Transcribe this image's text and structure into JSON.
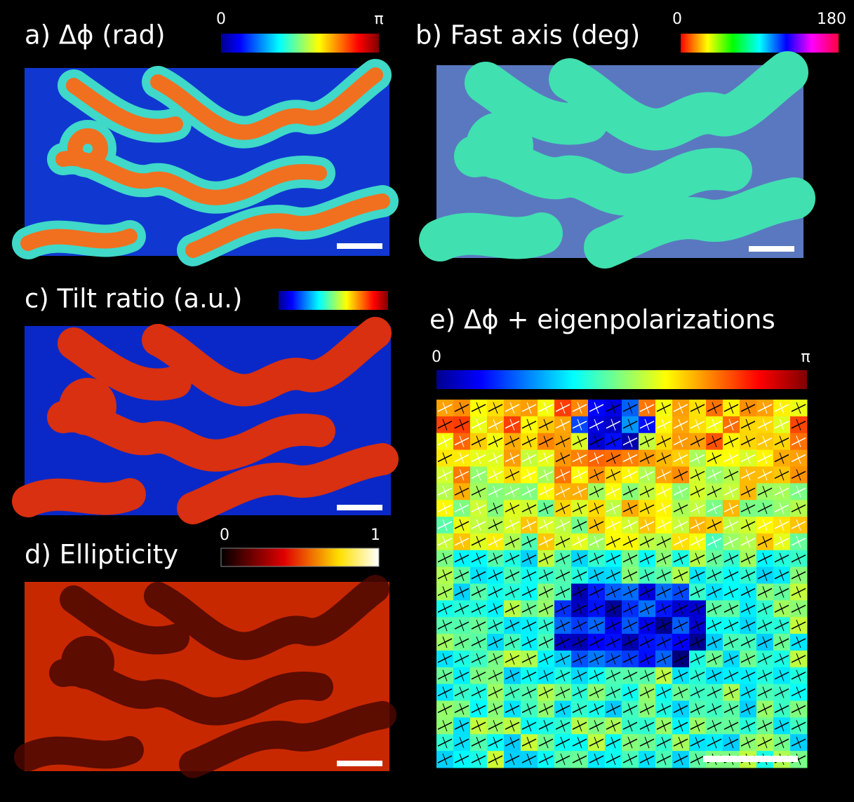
{
  "panels": [
    {
      "title": "a)  Δϕ (rad)",
      "colorbar": {
        "min_label": 0,
        "max_label": "π"
      }
    },
    {
      "title": "b) Fast axis (deg)",
      "colorbar": {
        "min_label": 0,
        "max_label": 180
      }
    },
    {
      "title": "c) Tilt ratio (a.u.)"
    },
    {
      "title": "d) Ellipticity",
      "colorbar": {
        "min_label": 0,
        "max_label": 1
      }
    },
    {
      "title": "e) Δϕ + eigenpolarizations",
      "colorbar": {
        "min_label": 0,
        "max_label": "π"
      }
    }
  ]
}
